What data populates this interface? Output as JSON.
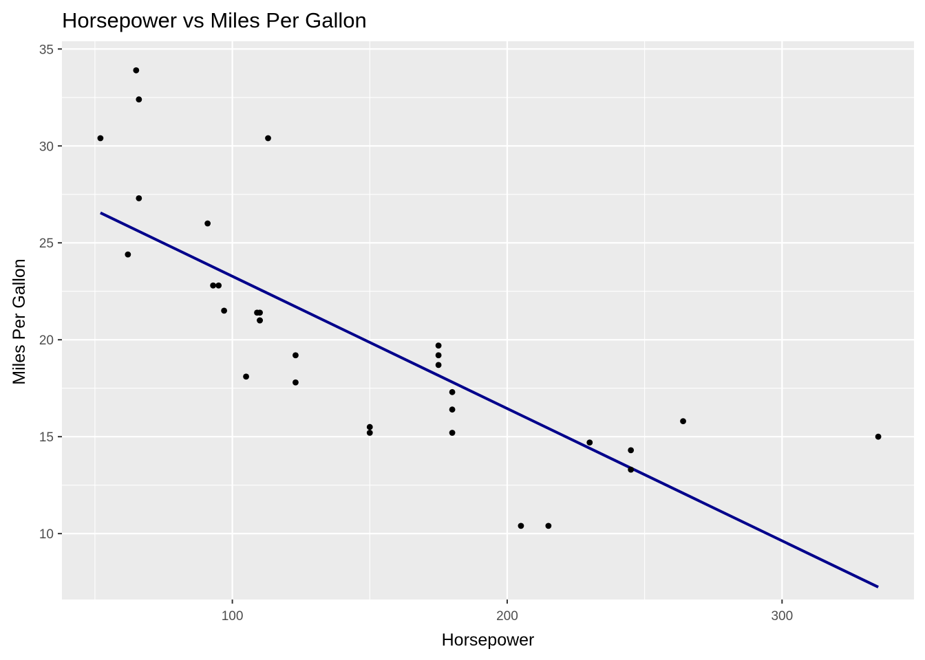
{
  "chart_data": {
    "type": "scatter",
    "title": "Horsepower vs Miles Per Gallon",
    "xlabel": "Horsepower",
    "ylabel": "Miles Per Gallon",
    "xlim": [
      38,
      348
    ],
    "ylim": [
      6.6,
      35.4
    ],
    "x_major_ticks": [
      100,
      200,
      300
    ],
    "x_minor_ticks": [
      50,
      150,
      250
    ],
    "y_major_ticks": [
      10,
      15,
      20,
      25,
      30,
      35
    ],
    "y_minor_ticks": [
      12.5,
      17.5,
      22.5,
      27.5,
      32.5
    ],
    "x_tick_labels": [
      "100",
      "200",
      "300"
    ],
    "y_tick_labels": [
      "10",
      "15",
      "20",
      "25",
      "30",
      "35"
    ],
    "grid": true,
    "legend": "none",
    "points": [
      {
        "x": 110,
        "y": 21.0
      },
      {
        "x": 110,
        "y": 21.0
      },
      {
        "x": 93,
        "y": 22.8
      },
      {
        "x": 110,
        "y": 21.4
      },
      {
        "x": 175,
        "y": 18.7
      },
      {
        "x": 105,
        "y": 18.1
      },
      {
        "x": 245,
        "y": 14.3
      },
      {
        "x": 62,
        "y": 24.4
      },
      {
        "x": 95,
        "y": 22.8
      },
      {
        "x": 123,
        "y": 19.2
      },
      {
        "x": 123,
        "y": 17.8
      },
      {
        "x": 180,
        "y": 16.4
      },
      {
        "x": 180,
        "y": 17.3
      },
      {
        "x": 180,
        "y": 15.2
      },
      {
        "x": 205,
        "y": 10.4
      },
      {
        "x": 215,
        "y": 10.4
      },
      {
        "x": 230,
        "y": 14.7
      },
      {
        "x": 66,
        "y": 32.4
      },
      {
        "x": 52,
        "y": 30.4
      },
      {
        "x": 65,
        "y": 33.9
      },
      {
        "x": 97,
        "y": 21.5
      },
      {
        "x": 150,
        "y": 15.5
      },
      {
        "x": 150,
        "y": 15.2
      },
      {
        "x": 245,
        "y": 13.3
      },
      {
        "x": 175,
        "y": 19.2
      },
      {
        "x": 66,
        "y": 27.3
      },
      {
        "x": 91,
        "y": 26.0
      },
      {
        "x": 113,
        "y": 30.4
      },
      {
        "x": 264,
        "y": 15.8
      },
      {
        "x": 175,
        "y": 19.7
      },
      {
        "x": 335,
        "y": 15.0
      },
      {
        "x": 109,
        "y": 21.4
      }
    ],
    "trend_line": {
      "x": [
        52,
        335
      ],
      "y": [
        26.55,
        7.24
      ]
    },
    "colors": {
      "points": "#000000",
      "trend_line": "#00008b",
      "panel_background": "#ebebeb",
      "grid": "#ffffff",
      "tick_label": "#4d4d4d",
      "tick_mark": "#333333"
    }
  }
}
